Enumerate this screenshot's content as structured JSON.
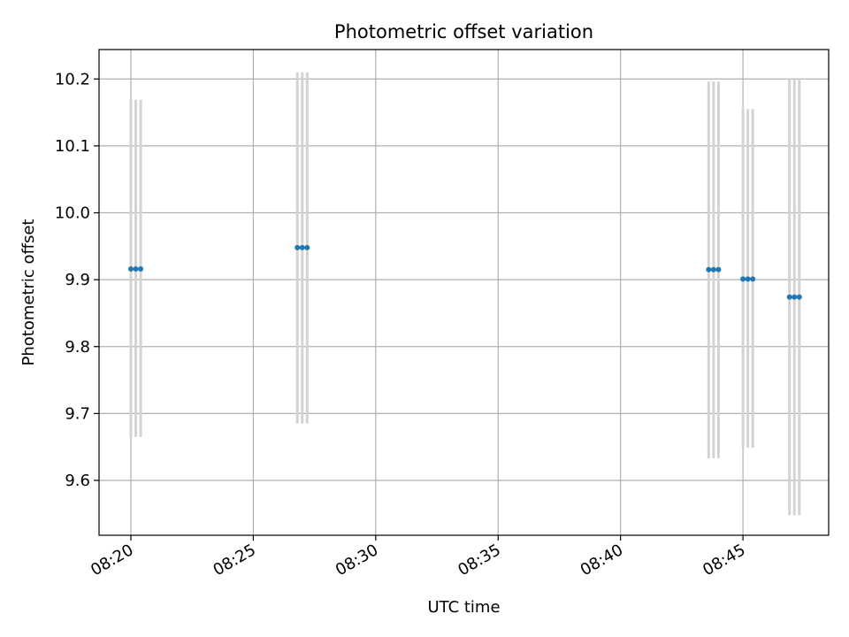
{
  "chart_data": {
    "type": "scatter",
    "title": "Photometric offset variation",
    "xlabel": "UTC time",
    "ylabel": "Photometric offset",
    "x_ticks": [
      "08:20",
      "08:25",
      "08:30",
      "08:35",
      "08:40",
      "08:45"
    ],
    "y_ticks": [
      "9.6",
      "9.7",
      "9.8",
      "9.9",
      "10.0",
      "10.1",
      "10.2"
    ],
    "xlim": [
      "08:18:42",
      "08:48:30"
    ],
    "ylim": [
      9.518,
      10.244
    ],
    "grid": true,
    "colors": {
      "marker": "#1f77b4",
      "errorbar": "#d3d3d3",
      "grid": "#b0b0b0"
    },
    "series": [
      {
        "points": [
          {
            "x": "08:20:00",
            "y": 9.916,
            "yerr_low": 9.665,
            "yerr_high": 10.169
          },
          {
            "x": "08:20:12",
            "y": 9.916,
            "yerr_low": 9.665,
            "yerr_high": 10.169
          },
          {
            "x": "08:20:24",
            "y": 9.916,
            "yerr_low": 9.665,
            "yerr_high": 10.169
          },
          {
            "x": "08:26:48",
            "y": 9.948,
            "yerr_low": 9.685,
            "yerr_high": 10.21
          },
          {
            "x": "08:27:00",
            "y": 9.948,
            "yerr_low": 9.685,
            "yerr_high": 10.21
          },
          {
            "x": "08:27:12",
            "y": 9.948,
            "yerr_low": 9.685,
            "yerr_high": 10.21
          },
          {
            "x": "08:43:36",
            "y": 9.915,
            "yerr_low": 9.633,
            "yerr_high": 10.196
          },
          {
            "x": "08:43:48",
            "y": 9.915,
            "yerr_low": 9.633,
            "yerr_high": 10.196
          },
          {
            "x": "08:44:00",
            "y": 9.915,
            "yerr_low": 9.633,
            "yerr_high": 10.196
          },
          {
            "x": "08:45:00",
            "y": 9.901,
            "yerr_low": 9.649,
            "yerr_high": 10.155
          },
          {
            "x": "08:45:12",
            "y": 9.901,
            "yerr_low": 9.649,
            "yerr_high": 10.155
          },
          {
            "x": "08:45:24",
            "y": 9.901,
            "yerr_low": 9.649,
            "yerr_high": 10.155
          },
          {
            "x": "08:46:54",
            "y": 9.874,
            "yerr_low": 9.548,
            "yerr_high": 10.2
          },
          {
            "x": "08:47:06",
            "y": 9.874,
            "yerr_low": 9.548,
            "yerr_high": 10.2
          },
          {
            "x": "08:47:18",
            "y": 9.874,
            "yerr_low": 9.548,
            "yerr_high": 10.2
          }
        ]
      }
    ]
  }
}
